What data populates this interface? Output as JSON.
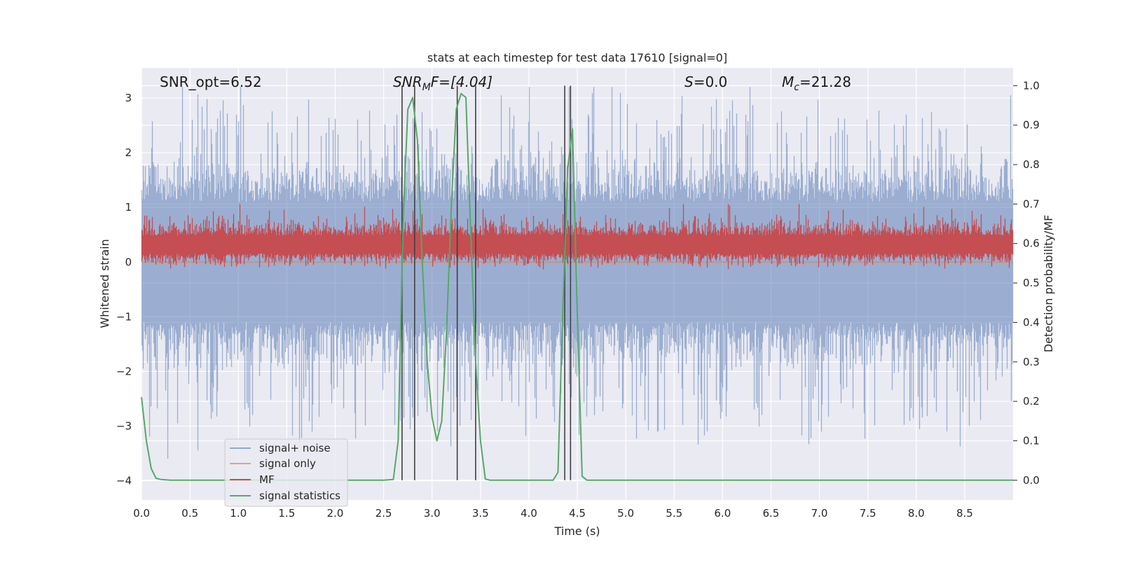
{
  "chart_data": {
    "type": "line",
    "title": "stats at each timestep for test data 17610 [signal=0]",
    "xlabel": "Time (s)",
    "ylabel_left": "Whitened strain",
    "ylabel_right": "Detection probability/MF",
    "xlim": [
      0,
      9.0
    ],
    "ylim_left": [
      -4.35,
      3.55
    ],
    "ylim_right": [
      -0.05,
      1.045
    ],
    "x_ticks": [
      "0.0",
      "0.5",
      "1.0",
      "1.5",
      "2.0",
      "2.5",
      "3.0",
      "3.5",
      "4.0",
      "4.5",
      "5.0",
      "5.5",
      "6.0",
      "6.5",
      "7.0",
      "7.5",
      "8.0",
      "8.5"
    ],
    "x_tick_values": [
      0,
      0.5,
      1,
      1.5,
      2,
      2.5,
      3,
      3.5,
      4,
      4.5,
      5,
      5.5,
      6,
      6.5,
      7,
      7.5,
      8,
      8.5
    ],
    "y_left_ticks": [
      "3",
      "2",
      "1",
      "0",
      "−1",
      "−2",
      "−3",
      "−4"
    ],
    "y_left_tick_values": [
      3,
      2,
      1,
      0,
      -1,
      -2,
      -3,
      -4
    ],
    "y_right_ticks": [
      "1.0",
      "0.9",
      "0.8",
      "0.7",
      "0.6",
      "0.5",
      "0.4",
      "0.3",
      "0.2",
      "0.1",
      "0.0"
    ],
    "y_right_tick_values": [
      1.0,
      0.9,
      0.8,
      0.7,
      0.6,
      0.5,
      0.4,
      0.3,
      0.2,
      0.1,
      0.0
    ],
    "grid": true,
    "legend_position": "lower-left",
    "annotations": {
      "snr_opt": "SNR_opt=6.52",
      "snr_mf_base": "SNR",
      "snr_mf_sub": "M",
      "snr_mf_rest": "F=[4.04]",
      "s_var": "S",
      "s_rest": "=0.0",
      "mc_base": "M",
      "mc_sub": "c",
      "mc_rest": "=21.28"
    },
    "series": [
      {
        "name": "signal+ noise",
        "color": "#4c72b0",
        "kind": "noise",
        "envelope_min": -4.0,
        "envelope_max": 3.2,
        "typical_amplitude": 1.5
      },
      {
        "name": "signal only",
        "color": "#dd8452",
        "kind": "flat",
        "value": 0.0
      },
      {
        "name": "MF",
        "color": "#c44e52",
        "kind": "mf",
        "baseline": 0.6,
        "envelope_max": 0.7
      },
      {
        "name": "signal statistics",
        "color": "#55a868",
        "kind": "line",
        "x": [
          0.0,
          0.05,
          0.1,
          0.15,
          0.2,
          0.3,
          1.0,
          2.0,
          2.5,
          2.6,
          2.65,
          2.7,
          2.75,
          2.8,
          2.85,
          2.9,
          2.95,
          3.0,
          3.05,
          3.1,
          3.15,
          3.2,
          3.25,
          3.3,
          3.35,
          3.4,
          3.45,
          3.5,
          3.55,
          3.6,
          3.65,
          4.0,
          4.25,
          4.3,
          4.35,
          4.4,
          4.45,
          4.5,
          4.55,
          4.6,
          5.0,
          9.0
        ],
        "y": [
          0.21,
          0.1,
          0.03,
          0.005,
          0.002,
          0.0,
          0.0,
          0.0,
          0.0,
          0.002,
          0.1,
          0.65,
          0.94,
          0.97,
          0.86,
          0.55,
          0.3,
          0.16,
          0.1,
          0.15,
          0.38,
          0.7,
          0.94,
          0.98,
          0.97,
          0.62,
          0.3,
          0.1,
          0.003,
          0.0,
          0.0,
          0.0,
          0.0,
          0.02,
          0.43,
          0.79,
          0.89,
          0.42,
          0.01,
          0.0,
          0.0,
          0.0
        ]
      }
    ],
    "vertical_lines": [
      2.69,
      2.82,
      3.26,
      3.45,
      4.37,
      4.43
    ],
    "vline_range_right": [
      0.0,
      1.0
    ],
    "vline_color": "#404040"
  }
}
